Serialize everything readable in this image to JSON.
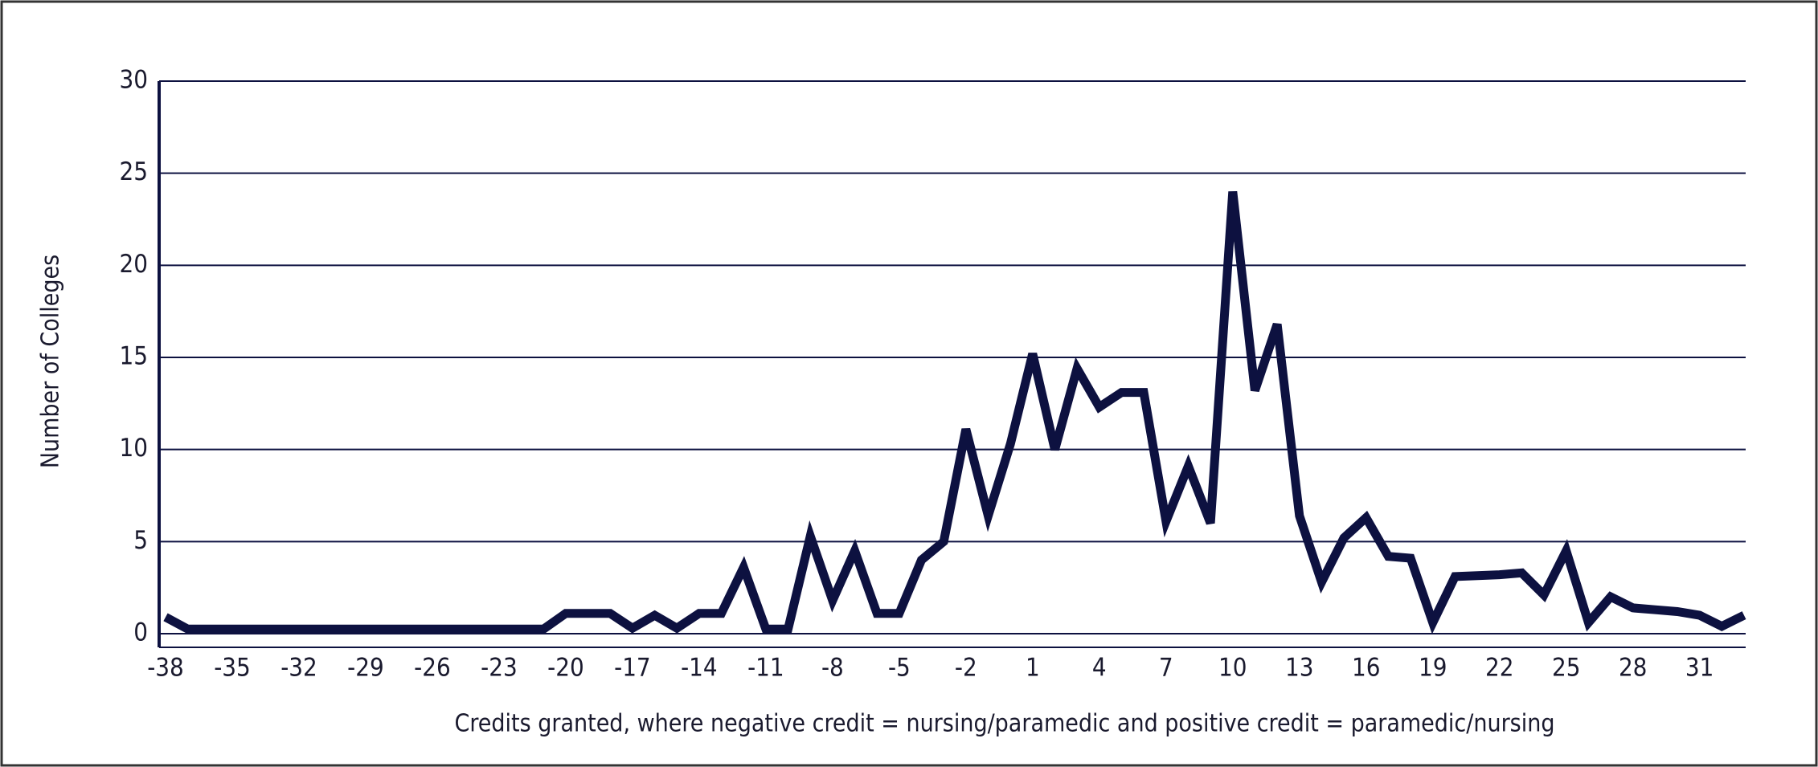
{
  "chart_data": {
    "type": "line",
    "x_label": "Credits granted, where negative credit = nursing/paramedic and positive credit = paramedic/nursing",
    "y_label": "Number of Colleges",
    "categories": [
      -38,
      null,
      null,
      -35,
      null,
      null,
      -32,
      null,
      null,
      -29,
      null,
      null,
      -26,
      null,
      null,
      -23,
      null,
      null,
      -20,
      null,
      null,
      -17,
      null,
      null,
      -14,
      null,
      null,
      -11,
      null,
      null,
      -8,
      null,
      null,
      -5,
      null,
      null,
      -2,
      null,
      null,
      1,
      null,
      null,
      4,
      null,
      null,
      7,
      null,
      null,
      10,
      null,
      null,
      13,
      null,
      null,
      16,
      null,
      null,
      19,
      null,
      null,
      22,
      null,
      null,
      25,
      null,
      null,
      28,
      null,
      null,
      31,
      null,
      null
    ],
    "series": [
      {
        "name": "Number of Colleges",
        "color": "#0d1140",
        "values": [
          0.9,
          0.25,
          0.25,
          0.25,
          0.25,
          0.25,
          0.25,
          0.25,
          0.25,
          0.25,
          0.25,
          0.25,
          0.25,
          0.25,
          0.25,
          0.25,
          0.25,
          0.25,
          1.1,
          1.1,
          1.1,
          0.3,
          1.0,
          0.3,
          1.1,
          1.1,
          3.6,
          0.25,
          0.25,
          5.3,
          1.8,
          4.5,
          1.1,
          1.1,
          4.0,
          5.0,
          11.1,
          6.4,
          10.3,
          15.2,
          10.0,
          14.4,
          12.3,
          13.1,
          13.1,
          6.1,
          9.1,
          6.0,
          24.0,
          13.2,
          16.8,
          6.4,
          2.8,
          5.2,
          6.3,
          4.2,
          4.1,
          0.6,
          3.1,
          3.15,
          3.2,
          3.3,
          2.1,
          4.5,
          0.6,
          2.0,
          1.4,
          1.3,
          1.2,
          1.0,
          0.4,
          1.0
        ]
      }
    ],
    "ylim": [
      0,
      30
    ],
    "yticks": [
      0,
      5,
      10,
      15,
      20,
      25,
      30
    ],
    "grid": true
  }
}
